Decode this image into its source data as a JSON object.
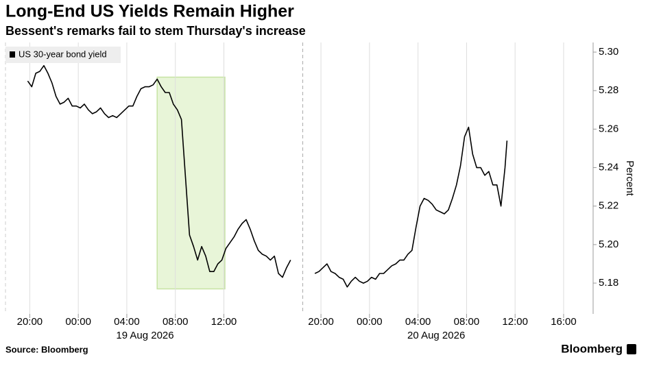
{
  "chart_data": {
    "type": "line",
    "title": "Long-End US Yields Remain Higher",
    "subtitle": "Bessent's remarks fail to stem Thursday's increase",
    "y_label": "Percent",
    "source": "Source: Bloomberg",
    "brand": "Bloomberg",
    "grid": true,
    "xlim": [
      "2026-08-18 18:00",
      "2026-08-20 17:35"
    ],
    "ylim": [
      5.164,
      5.305
    ],
    "yticks": [
      5.18,
      {
        "value": 5.2,
        "label": "5.20"
      },
      5.22,
      5.24,
      5.26,
      5.28,
      {
        "value": 5.3,
        "label": "5.30"
      }
    ],
    "xticks": [
      {
        "value": "2026-08-18 20:00",
        "label": "20:00"
      },
      {
        "value": "2026-08-19 00:00",
        "label": "00:00"
      },
      {
        "value": "2026-08-19 04:00",
        "label": "04:00"
      },
      {
        "value": "2026-08-19 08:00",
        "label": "08:00"
      },
      {
        "value": "2026-08-19 12:00",
        "label": "12:00"
      },
      {
        "value": "2026-08-19 20:00",
        "label": "20:00"
      },
      {
        "value": "2026-08-20 00:00",
        "label": "00:00"
      },
      {
        "value": "2026-08-20 04:00",
        "label": "04:00"
      },
      {
        "value": "2026-08-20 08:00",
        "label": "08:00"
      },
      {
        "value": "2026-08-20 12:00",
        "label": "12:00"
      },
      {
        "value": "2026-08-20 16:00",
        "label": "16:00"
      }
    ],
    "date_labels": [
      {
        "value": "2026-08-19 05:30",
        "label": "19 Aug 2026"
      },
      {
        "value": "2026-08-20 05:30",
        "label": "20 Aug 2026"
      }
    ],
    "highlight": {
      "x": [
        "2026-08-19 06:30",
        "2026-08-19 12:05"
      ],
      "y": [
        5.177,
        5.287
      ],
      "color": "#e8f5d8",
      "border": "#c6e3a3"
    },
    "x": [
      "2026-08-18 19:50",
      "2026-08-18 20:10",
      "2026-08-18 20:30",
      "2026-08-18 20:50",
      "2026-08-18 21:10",
      "2026-08-18 21:30",
      "2026-08-18 21:50",
      "2026-08-18 22:10",
      "2026-08-18 22:30",
      "2026-08-18 22:50",
      "2026-08-18 23:10",
      "2026-08-18 23:30",
      "2026-08-18 23:50",
      "2026-08-19 00:10",
      "2026-08-19 00:30",
      "2026-08-19 00:50",
      "2026-08-19 01:10",
      "2026-08-19 01:30",
      "2026-08-19 01:50",
      "2026-08-19 02:10",
      "2026-08-19 02:30",
      "2026-08-19 02:50",
      "2026-08-19 03:10",
      "2026-08-19 03:30",
      "2026-08-19 03:50",
      "2026-08-19 04:10",
      "2026-08-19 04:30",
      "2026-08-19 04:50",
      "2026-08-19 05:10",
      "2026-08-19 05:30",
      "2026-08-19 05:50",
      "2026-08-19 06:10",
      "2026-08-19 06:30",
      "2026-08-19 06:50",
      "2026-08-19 07:10",
      "2026-08-19 07:30",
      "2026-08-19 07:50",
      "2026-08-19 08:10",
      "2026-08-19 08:30",
      "2026-08-19 08:50",
      "2026-08-19 09:10",
      "2026-08-19 09:30",
      "2026-08-19 09:50",
      "2026-08-19 10:10",
      "2026-08-19 10:30",
      "2026-08-19 10:50",
      "2026-08-19 11:10",
      "2026-08-19 11:30",
      "2026-08-19 11:50",
      "2026-08-19 12:10",
      "2026-08-19 12:30",
      "2026-08-19 12:50",
      "2026-08-19 13:10",
      "2026-08-19 13:30",
      "2026-08-19 13:50",
      "2026-08-19 14:10",
      "2026-08-19 14:30",
      "2026-08-19 14:50",
      "2026-08-19 15:10",
      "2026-08-19 15:30",
      "2026-08-19 15:50",
      "2026-08-19 16:10",
      "2026-08-19 16:30",
      "2026-08-19 16:50",
      "2026-08-19 17:10",
      "2026-08-19 17:30",
      null,
      "2026-08-19 19:30",
      "2026-08-19 19:50",
      "2026-08-19 20:10",
      "2026-08-19 20:30",
      "2026-08-19 20:50",
      "2026-08-19 21:10",
      "2026-08-19 21:30",
      "2026-08-19 21:50",
      "2026-08-19 22:10",
      "2026-08-19 22:30",
      "2026-08-19 22:50",
      "2026-08-19 23:10",
      "2026-08-19 23:30",
      "2026-08-19 23:50",
      "2026-08-20 00:10",
      "2026-08-20 00:30",
      "2026-08-20 00:50",
      "2026-08-20 01:10",
      "2026-08-20 01:30",
      "2026-08-20 01:50",
      "2026-08-20 02:10",
      "2026-08-20 02:30",
      "2026-08-20 02:50",
      "2026-08-20 03:10",
      "2026-08-20 03:30",
      "2026-08-20 03:50",
      "2026-08-20 04:10",
      "2026-08-20 04:30",
      "2026-08-20 04:50",
      "2026-08-20 05:10",
      "2026-08-20 05:30",
      "2026-08-20 05:50",
      "2026-08-20 06:10",
      "2026-08-20 06:30",
      "2026-08-20 06:50",
      "2026-08-20 07:10",
      "2026-08-20 07:30",
      "2026-08-20 07:50",
      "2026-08-20 08:10",
      "2026-08-20 08:30",
      "2026-08-20 08:50",
      "2026-08-20 09:10",
      "2026-08-20 09:30",
      "2026-08-20 09:50",
      "2026-08-20 10:10",
      "2026-08-20 10:30",
      "2026-08-20 10:50",
      "2026-08-20 11:10",
      "2026-08-20 11:20"
    ],
    "series": [
      {
        "name": "US 30-year bond yield",
        "color": "#000000",
        "values": [
          5.285,
          5.282,
          5.289,
          5.29,
          5.293,
          5.289,
          5.284,
          5.277,
          5.273,
          5.274,
          5.276,
          5.272,
          5.272,
          5.271,
          5.273,
          5.27,
          5.268,
          5.269,
          5.271,
          5.268,
          5.266,
          5.267,
          5.266,
          5.268,
          5.27,
          5.272,
          5.272,
          5.277,
          5.281,
          5.282,
          5.282,
          5.283,
          5.286,
          5.282,
          5.279,
          5.279,
          5.273,
          5.27,
          5.265,
          5.235,
          5.205,
          5.199,
          5.192,
          5.199,
          5.194,
          5.186,
          5.186,
          5.19,
          5.192,
          5.198,
          5.201,
          5.204,
          5.208,
          5.211,
          5.213,
          5.208,
          5.202,
          5.197,
          5.195,
          5.194,
          5.192,
          5.194,
          5.185,
          5.183,
          5.188,
          5.192,
          null,
          5.185,
          5.186,
          5.188,
          5.19,
          5.186,
          5.185,
          5.183,
          5.182,
          5.178,
          5.181,
          5.183,
          5.181,
          5.18,
          5.181,
          5.183,
          5.182,
          5.185,
          5.185,
          5.187,
          5.189,
          5.19,
          5.192,
          5.192,
          5.195,
          5.197,
          5.209,
          5.22,
          5.224,
          5.223,
          5.221,
          5.218,
          5.217,
          5.216,
          5.218,
          5.224,
          5.231,
          5.241,
          5.256,
          5.261,
          5.247,
          5.24,
          5.24,
          5.236,
          5.238,
          5.231,
          5.231,
          5.22,
          5.24,
          5.254
        ]
      }
    ]
  }
}
